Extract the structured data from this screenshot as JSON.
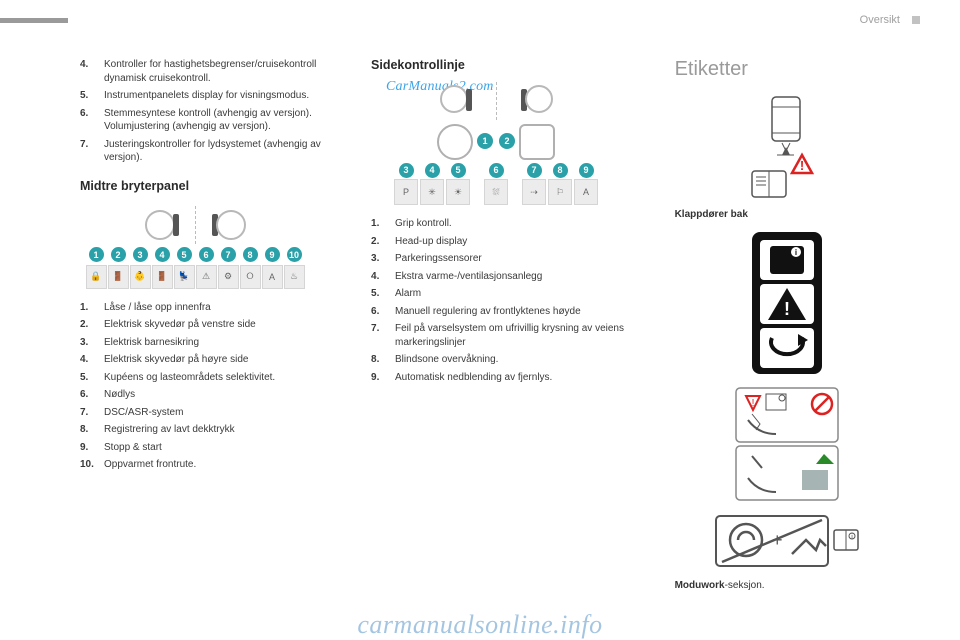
{
  "header": {
    "section": "Oversikt"
  },
  "watermark_top": "CarManuals2.com",
  "watermark_bottom": "carmanualsonline.info",
  "left": {
    "continued_list": [
      {
        "n": "4.",
        "text": "Kontroller for hastighetsbegrenser/cruisekontroll dynamisk cruisekontroll."
      },
      {
        "n": "5.",
        "text": "Instrumentpanelets display for visningsmodus."
      },
      {
        "n": "6.",
        "text": "Stemmesyntese kontroll (avhengig av versjon).",
        "sub": "Volumjustering (avhengig av versjon)."
      },
      {
        "n": "7.",
        "text": "Justeringskontroller for lydsystemet (avhengig av versjon)."
      }
    ],
    "panel_title": "Midtre bryterpanel",
    "panel_numbers": [
      "1",
      "2",
      "3",
      "4",
      "5",
      "6",
      "7",
      "8",
      "9",
      "10"
    ],
    "panel_icons": [
      "🔒",
      "🚪",
      "👶",
      "🚪",
      "💺",
      "⚠",
      "⚙",
      "⭘",
      "A",
      "♨"
    ],
    "panel_list": [
      {
        "n": "1.",
        "text": "Låse / låse opp innenfra"
      },
      {
        "n": "2.",
        "text": "Elektrisk skyvedør på venstre side"
      },
      {
        "n": "3.",
        "text": "Elektrisk barnesikring"
      },
      {
        "n": "4.",
        "text": "Elektrisk skyvedør på høyre side"
      },
      {
        "n": "5.",
        "text": "Kupéens og lasteområdets selektivitet."
      },
      {
        "n": "6.",
        "text": "Nødlys"
      },
      {
        "n": "7.",
        "text": "DSC/ASR-system"
      },
      {
        "n": "8.",
        "text": "Registrering av lavt dekktrykk"
      },
      {
        "n": "9.",
        "text": "Stopp & start"
      },
      {
        "n": "10.",
        "text": "Oppvarmet frontrute."
      }
    ]
  },
  "mid": {
    "title": "Sidekontrollinje",
    "top_badges": [
      "1",
      "2"
    ],
    "bottom_badges": [
      "3",
      "4",
      "5",
      "6",
      "7",
      "8",
      "9"
    ],
    "bottom_icons": [
      "P",
      "✳",
      "☀",
      "⛆",
      "⇢",
      "⚐",
      "A"
    ],
    "list": [
      {
        "n": "1.",
        "text": "Grip kontroll."
      },
      {
        "n": "2.",
        "text": "Head-up display"
      },
      {
        "n": "3.",
        "text": "Parkeringssensorer"
      },
      {
        "n": "4.",
        "text": "Ekstra varme-/ventilasjonsanlegg"
      },
      {
        "n": "5.",
        "text": "Alarm"
      },
      {
        "n": "6.",
        "text": "Manuell regulering av frontlyktenes høyde"
      },
      {
        "n": "7.",
        "text": "Feil på varselsystem om ufrivillig krysning av veiens markeringslinjer"
      },
      {
        "n": "8.",
        "text": "Blindsone overvåkning."
      },
      {
        "n": "9.",
        "text": "Automatisk nedblending av fjernlys."
      }
    ]
  },
  "right": {
    "title": "Etiketter",
    "caption1_bold": "Klappdører bak",
    "caption2_bold": "Moduwork",
    "caption2_rest": "-seksjon."
  },
  "style": {
    "badge_color": "#2aa0a8",
    "button_bg": "#ececec",
    "button_border": "#d5d5d5",
    "text_color": "#3a3a3a",
    "muted_color": "#9a9a9a"
  }
}
